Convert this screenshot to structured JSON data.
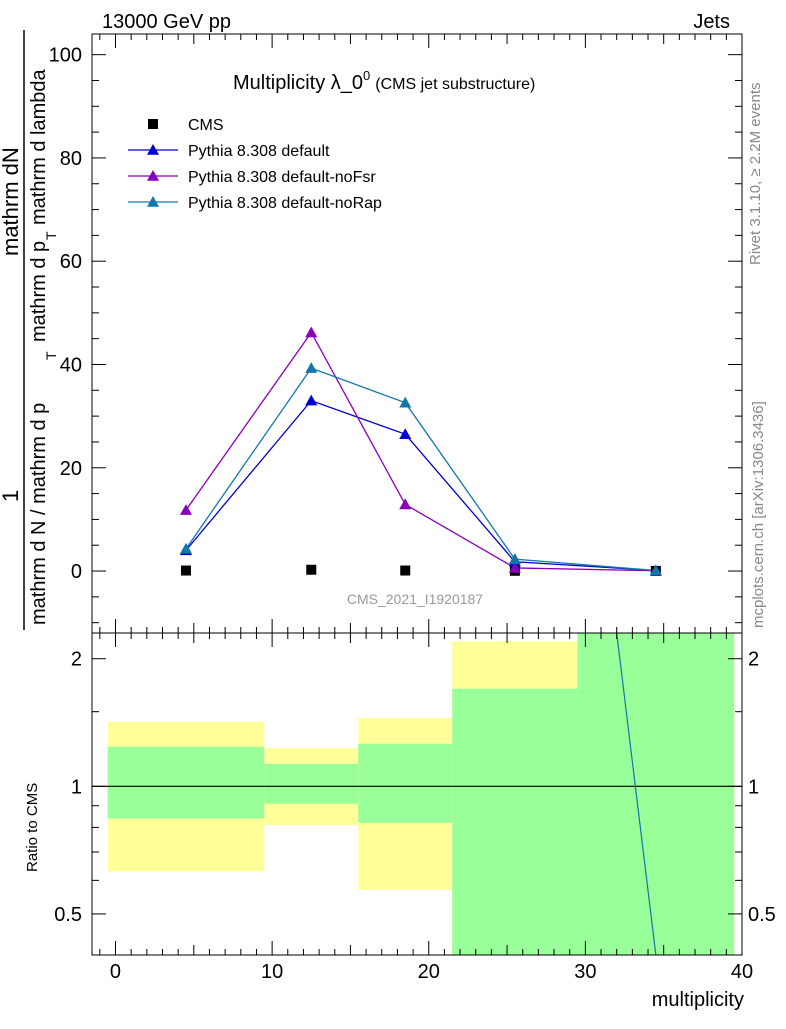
{
  "header": {
    "left": "13000 GeV pp",
    "right": "Jets"
  },
  "side": {
    "rivet": "Rivet 3.1.10, ≥ 2.2M events",
    "mcplots": "mcplots.cern.ch [arXiv:1306.3436]"
  },
  "chart_data": [
    {
      "type": "line",
      "title_main": "Multiplicity λ_0",
      "title_sup": "0",
      "title_note": "(CMS jet substructure)",
      "analysis_label": "CMS_2021_I1920187",
      "ylabel_top": "1",
      "ylabel_mid": "mathrm dN",
      "ylabel_mid_sub": "mathrm d p",
      "ylabel_mid_tail": "mathrm d lambda",
      "ylabel_bottom": "mathrm d N / mathrm d p",
      "ylabel_bottom_sub": "T",
      "ylim": [
        -12,
        104
      ],
      "yticks": [
        0,
        20,
        40,
        60,
        80,
        100
      ],
      "xlim": [
        -1.5,
        40
      ],
      "legend_position": "top-left",
      "series": [
        {
          "name": "CMS",
          "color": "#000000",
          "marker": "square",
          "x": [
            4.5,
            12.5,
            18.5,
            25.5,
            34.5
          ],
          "y": [
            0.1,
            0.25,
            0.1,
            0.05,
            0.02
          ]
        },
        {
          "name": "Pythia 8.308 default",
          "color": "#0000cc",
          "marker": "triangle",
          "x": [
            4.5,
            12.5,
            18.5,
            25.5,
            34.5
          ],
          "y": [
            4.0,
            33.0,
            26.5,
            1.8,
            0.1
          ]
        },
        {
          "name": "Pythia 8.308 default-noFsr",
          "color": "#8800bb",
          "marker": "triangle",
          "x": [
            4.5,
            12.5,
            18.5,
            25.5,
            34.5
          ],
          "y": [
            11.8,
            46.2,
            12.9,
            0.6,
            0.05
          ]
        },
        {
          "name": "Pythia 8.308 default-noRap",
          "color": "#1177aa",
          "marker": "triangle",
          "x": [
            4.5,
            12.5,
            18.5,
            25.5,
            34.5
          ],
          "y": [
            4.3,
            39.3,
            32.6,
            2.3,
            0.1
          ]
        }
      ]
    },
    {
      "type": "line",
      "xlabel": "multiplicity",
      "ylabel": "Ratio to CMS",
      "log_y": true,
      "ylim": [
        0.4,
        2.3
      ],
      "yticks": [
        0.5,
        1,
        2
      ],
      "ytick_labels": [
        "0.5",
        "1",
        "2"
      ],
      "xlim": [
        -1.5,
        40
      ],
      "xticks": [
        0,
        10,
        20,
        30,
        40
      ],
      "bands": [
        {
          "x0": -0.5,
          "x1": 9.5,
          "yellow": [
            0.63,
            1.42
          ],
          "green": [
            0.84,
            1.24
          ]
        },
        {
          "x0": 9.5,
          "x1": 15.5,
          "yellow": [
            0.81,
            1.23
          ],
          "green": [
            0.91,
            1.13
          ]
        },
        {
          "x0": 15.5,
          "x1": 21.5,
          "yellow": [
            0.57,
            1.45
          ],
          "green": [
            0.82,
            1.26
          ]
        },
        {
          "x0": 21.5,
          "x1": 29.5,
          "yellow": [
            0.4,
            2.2
          ],
          "green": [
            0.4,
            1.7
          ]
        },
        {
          "x0": 29.5,
          "x1": 39.5,
          "yellow": [
            0.4,
            2.3
          ],
          "green": [
            0.4,
            2.3
          ]
        }
      ],
      "ratio_line": {
        "color": "#1177aa",
        "x": [
          32.0,
          34.5
        ],
        "y": [
          2.3,
          0.38
        ]
      }
    }
  ]
}
